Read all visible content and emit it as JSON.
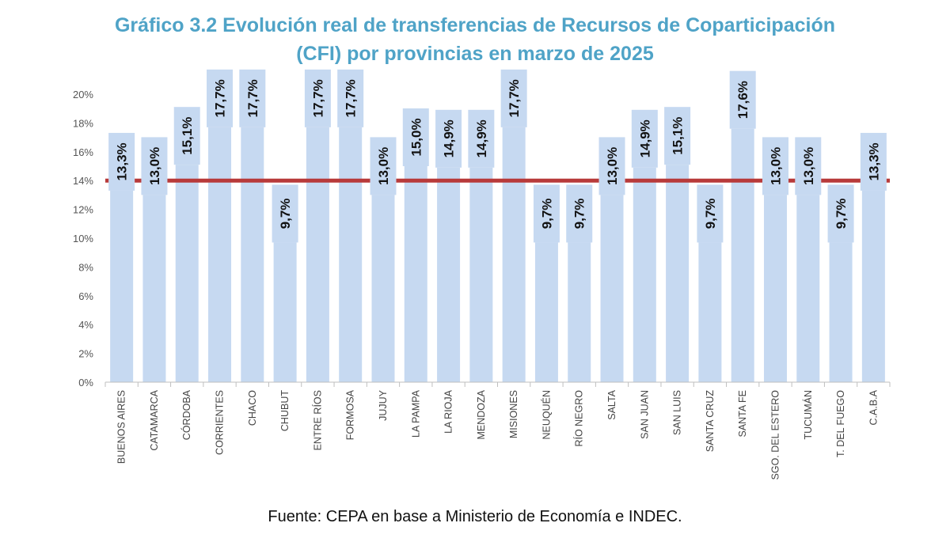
{
  "chart_data": {
    "type": "bar",
    "title_line1": "Gráfico 3.2 Evolución real de transferencias de Recursos de Coparticipación",
    "title_line2": "(CFI) por provincias en marzo de 2025",
    "categories": [
      "BUENOS AIRES",
      "CATAMARCA",
      "CÓRDOBA",
      "CORRIENTES",
      "CHACO",
      "CHUBUT",
      "ENTRE RÍOS",
      "FORMOSA",
      "JUJUY",
      "LA PAMPA",
      "LA RIOJA",
      "MENDOZA",
      "MISIONES",
      "NEUQUÉN",
      "RÍO NEGRO",
      "SALTA",
      "SAN JUAN",
      "SAN LUIS",
      "SANTA CRUZ",
      "SANTA FE",
      "SGO. DEL ESTERO",
      "TUCUMÁN",
      "T. DEL FUEGO",
      "C.A.B.A"
    ],
    "values": [
      13.3,
      13.0,
      15.1,
      17.7,
      17.7,
      9.7,
      17.7,
      17.7,
      13.0,
      15.0,
      14.9,
      14.9,
      17.7,
      9.7,
      9.7,
      13.0,
      14.9,
      15.1,
      9.7,
      17.6,
      13.0,
      13.0,
      9.7,
      13.3
    ],
    "value_labels": [
      "13,3%",
      "13,0%",
      "15,1%",
      "17,7%",
      "17,7%",
      "9,7%",
      "17,7%",
      "17,7%",
      "13,0%",
      "15,0%",
      "14,9%",
      "14,9%",
      "17,7%",
      "9,7%",
      "9,7%",
      "13,0%",
      "14,9%",
      "15,1%",
      "9,7%",
      "17,6%",
      "13,0%",
      "13,0%",
      "9,7%",
      "13,3%"
    ],
    "reference_line": 14.0,
    "ylim": [
      0,
      20
    ],
    "yticks": [
      "0%",
      "2%",
      "4%",
      "6%",
      "8%",
      "10%",
      "12%",
      "14%",
      "16%",
      "18%",
      "20%"
    ],
    "grid": false,
    "colors": {
      "bar": "#c6d9f1",
      "reference_line": "#b83a3a",
      "title": "#4fa3c7",
      "axis": "#bfbfbf"
    }
  },
  "source": "Fuente: CEPA en base a Ministerio de Economía e INDEC."
}
